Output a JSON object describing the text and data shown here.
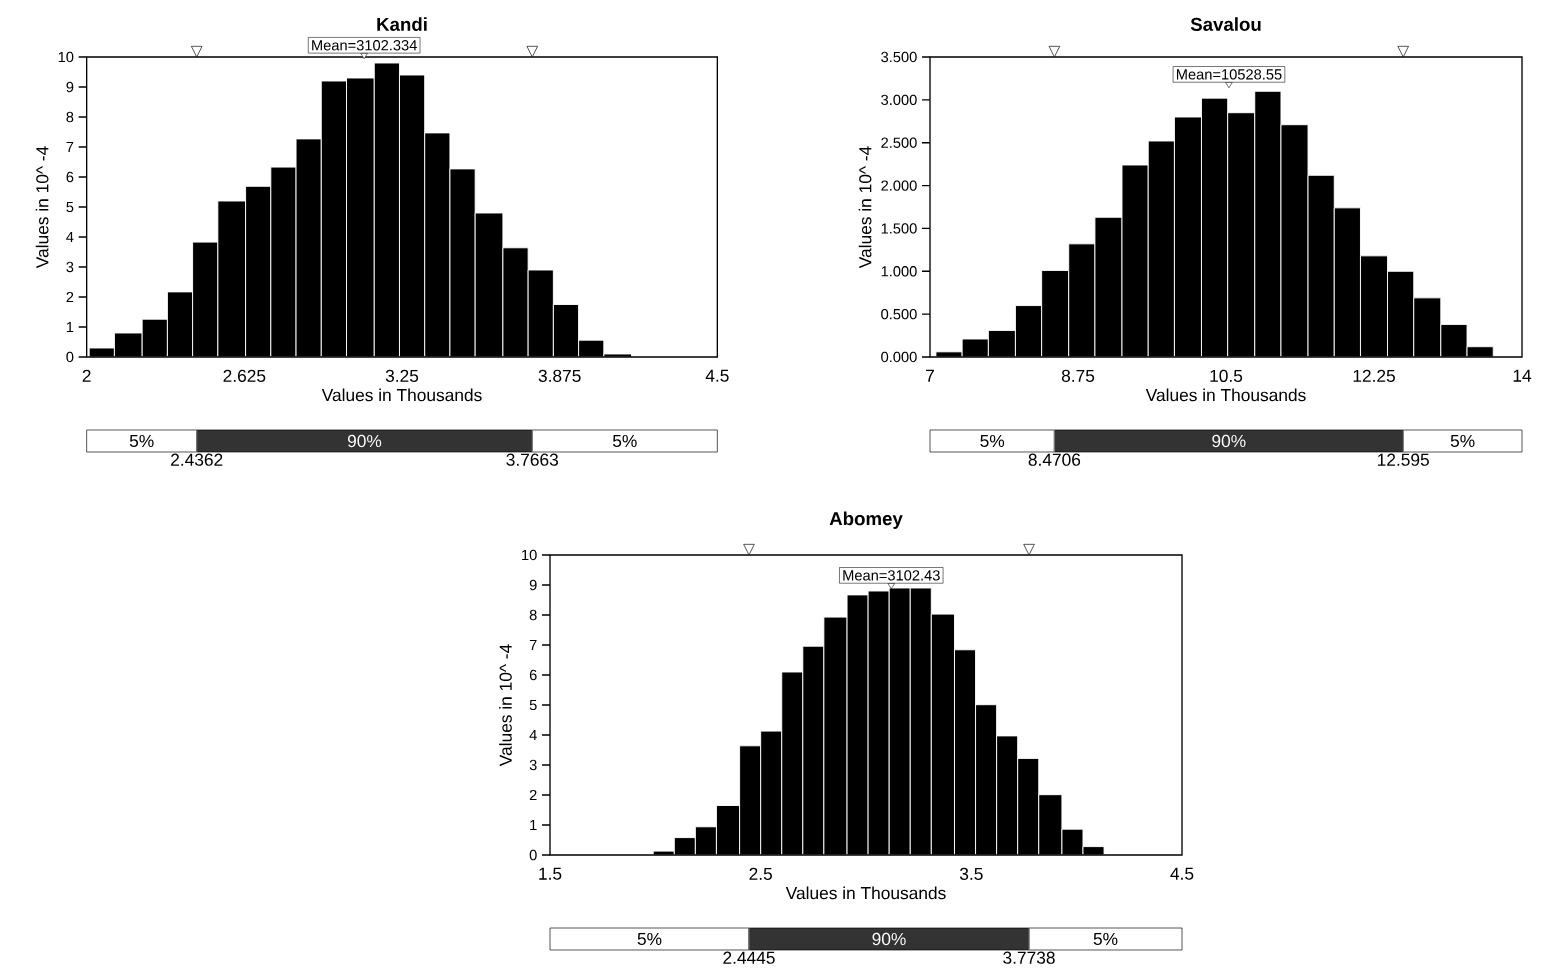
{
  "chart_data": [
    {
      "type": "histogram",
      "title": "Kandi",
      "xlabel": "Values in Thousands",
      "ylabel": "Values in 10^ -4",
      "color": "#000000",
      "bins": [
        2.01,
        2.11,
        2.22,
        2.32,
        2.42,
        2.52,
        2.63,
        2.73,
        2.83,
        2.93,
        3.03,
        3.14,
        3.24,
        3.34,
        3.44,
        3.54,
        3.65,
        3.75,
        3.85,
        3.95,
        4.05,
        4.16
      ],
      "values": [
        0.3,
        0.8,
        1.26,
        2.17,
        3.83,
        5.2,
        5.69,
        6.33,
        7.27,
        9.2,
        9.3,
        9.8,
        9.4,
        7.47,
        6.27,
        4.8,
        3.64,
        2.9,
        1.75,
        0.56,
        0.1
      ],
      "xlim": [
        2,
        4.5
      ],
      "ylim": [
        0,
        10
      ],
      "xticks": [
        2,
        2.625,
        3.25,
        3.875,
        4.5
      ],
      "yticks": [
        0,
        1,
        2,
        3,
        4,
        5,
        6,
        7,
        8,
        9,
        10
      ],
      "annotations": [
        "Mean=3102.334",
        "5%",
        "90%",
        "5%"
      ],
      "ref_lines": [
        {
          "axis": "x",
          "value": 2.4362,
          "label": "2.4362"
        },
        {
          "axis": "x",
          "value": 3.7663,
          "label": "3.7663"
        }
      ]
    },
    {
      "type": "histogram",
      "title": "Savalou",
      "xlabel": "Values in Thousands",
      "ylabel": "Values in 10^ -4",
      "color": "#000000",
      "bins": [
        7.07,
        7.38,
        7.69,
        8.01,
        8.32,
        8.64,
        8.95,
        9.27,
        9.58,
        9.89,
        10.21,
        10.52,
        10.84,
        11.15,
        11.47,
        11.78,
        12.09,
        12.41,
        12.72,
        13.04,
        13.35,
        13.66
      ],
      "values": [
        0.06,
        0.21,
        0.31,
        0.6,
        1.01,
        1.32,
        1.63,
        2.24,
        2.52,
        2.8,
        3.02,
        2.85,
        3.1,
        2.71,
        2.12,
        1.74,
        1.18,
        1.0,
        0.69,
        0.38,
        0.12
      ],
      "xlim": [
        7,
        14
      ],
      "ylim": [
        0,
        3.5
      ],
      "xticks": [
        7,
        8.75,
        10.5,
        12.25,
        14
      ],
      "yticks": [
        {
          "value": 0,
          "label": "0.000"
        },
        {
          "value": 0.5,
          "label": "0.500"
        },
        {
          "value": 1,
          "label": "1.000"
        },
        {
          "value": 1.5,
          "label": "1.500"
        },
        {
          "value": 2,
          "label": "2.000"
        },
        {
          "value": 2.5,
          "label": "2.500"
        },
        {
          "value": 3,
          "label": "3.000"
        },
        {
          "value": 3.5,
          "label": "3.500"
        }
      ],
      "annotations": [
        "Mean=10528.55",
        "5%",
        "90%",
        "5%"
      ],
      "ref_lines": [
        {
          "axis": "x",
          "value": 8.4706,
          "label": "8.4706"
        },
        {
          "axis": "x",
          "value": 12.595,
          "label": "12.595"
        }
      ]
    },
    {
      "type": "histogram",
      "title": "Abomey",
      "xlabel": "Values in Thousands",
      "ylabel": "Values in 10^ -4",
      "color": "#000000",
      "bins": [
        1.99,
        2.09,
        2.19,
        2.29,
        2.4,
        2.5,
        2.6,
        2.7,
        2.8,
        2.91,
        3.01,
        3.11,
        3.21,
        3.31,
        3.42,
        3.52,
        3.62,
        3.72,
        3.82,
        3.93,
        4.03,
        4.13
      ],
      "values": [
        0.13,
        0.58,
        0.94,
        1.65,
        3.64,
        4.13,
        6.1,
        6.96,
        7.93,
        8.67,
        8.8,
        8.9,
        8.9,
        8.03,
        6.84,
        5.01,
        3.97,
        3.22,
        2.01,
        0.86,
        0.28
      ],
      "xlim": [
        1.5,
        4.5
      ],
      "ylim": [
        0,
        10
      ],
      "xticks": [
        1.5,
        2.5,
        3.5,
        4.5
      ],
      "yticks": [
        0,
        1,
        2,
        3,
        4,
        5,
        6,
        7,
        8,
        9,
        10
      ],
      "annotations": [
        "Mean=3102.43",
        "5%",
        "90%",
        "5%"
      ],
      "ref_lines": [
        {
          "axis": "x",
          "value": 2.4445,
          "label": "2.4445"
        },
        {
          "axis": "x",
          "value": 3.7738,
          "label": "3.7738"
        }
      ]
    }
  ]
}
